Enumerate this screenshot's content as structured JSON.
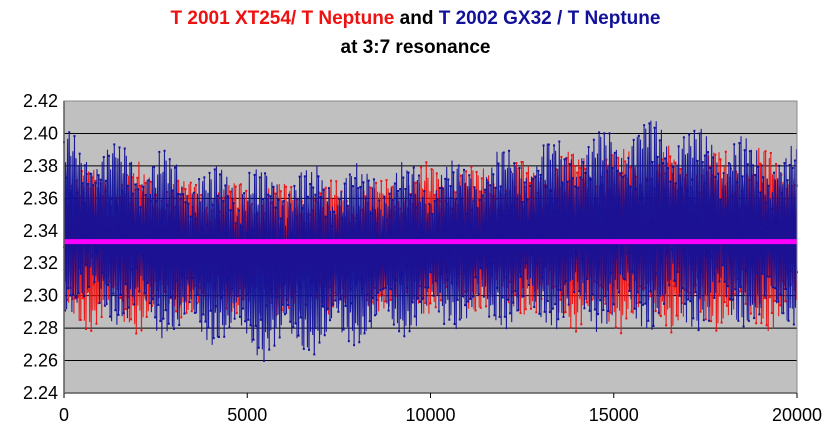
{
  "title": {
    "part1": "T 2001 XT254/ T Neptune",
    "part2": " and ",
    "part3": "T 2002 GX32 / T Neptune",
    "line2": "at 3:7 resonance"
  },
  "colors": {
    "series1": "#ee1111",
    "series2": "#11119a",
    "reference": "#ff00ff",
    "plot_bg": "#c0c0c0",
    "grid": "#000000"
  },
  "chart_data": {
    "type": "line",
    "title": "T 2001 XT254/ T Neptune and T 2002 GX32 / T Neptune at 3:7 resonance",
    "xlabel": "",
    "ylabel": "",
    "xlim": [
      0,
      20000
    ],
    "ylim": [
      2.24,
      2.42
    ],
    "x_ticks": [
      "0",
      "5000",
      "10000",
      "15000",
      "20000"
    ],
    "y_ticks": [
      "2.24",
      "2.26",
      "2.28",
      "2.30",
      "2.32",
      "2.34",
      "2.36",
      "2.38",
      "2.40",
      "2.42"
    ],
    "grid": "horizontal",
    "legend": "none",
    "reference_line": {
      "y": 2.3333
    },
    "series": [
      {
        "name": "T 2001 XT254/ T Neptune",
        "style": "red line with point markers",
        "envelope": {
          "x": [
            0,
            2000,
            4000,
            6000,
            8000,
            10000,
            12000,
            14000,
            16000,
            18000,
            20000
          ],
          "min": [
            2.28,
            2.28,
            2.29,
            2.29,
            2.29,
            2.29,
            2.29,
            2.28,
            2.28,
            2.28,
            2.28
          ],
          "max": [
            2.38,
            2.38,
            2.37,
            2.37,
            2.37,
            2.38,
            2.38,
            2.39,
            2.39,
            2.39,
            2.39
          ]
        }
      },
      {
        "name": "T 2002 GX32 / T Neptune",
        "style": "blue line with point markers",
        "envelope": {
          "x": [
            0,
            2000,
            4000,
            6000,
            8000,
            10000,
            12000,
            14000,
            16000,
            18000,
            20000
          ],
          "min": [
            2.29,
            2.28,
            2.27,
            2.26,
            2.27,
            2.28,
            2.28,
            2.28,
            2.28,
            2.28,
            2.28
          ],
          "max": [
            2.4,
            2.39,
            2.38,
            2.38,
            2.38,
            2.38,
            2.39,
            2.4,
            2.41,
            2.4,
            2.39
          ]
        }
      }
    ]
  }
}
